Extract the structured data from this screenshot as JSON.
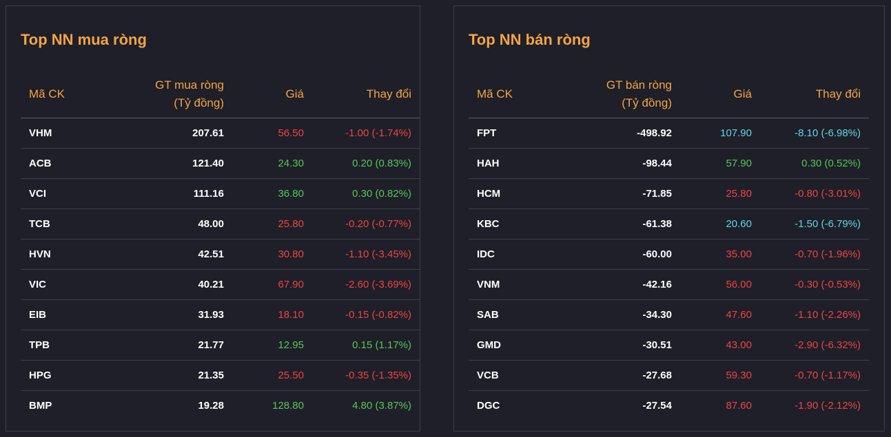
{
  "colors": {
    "up": "#57c75a",
    "down": "#ef4444",
    "floor": "#5fd9e2",
    "accent": "#f5a443"
  },
  "left": {
    "title": "Top NN mua ròng",
    "headers": {
      "code": "Mã CK",
      "value_line1": "GT mua ròng",
      "value_line2": "(Tỷ đồng)",
      "price": "Giá",
      "change": "Thay đổi"
    },
    "rows": [
      {
        "code": "VHM",
        "value": "207.61",
        "price": "56.50",
        "change": "-1.00 (-1.74%)",
        "status": "down"
      },
      {
        "code": "ACB",
        "value": "121.40",
        "price": "24.30",
        "change": "0.20 (0.83%)",
        "status": "up"
      },
      {
        "code": "VCI",
        "value": "111.16",
        "price": "36.80",
        "change": "0.30 (0.82%)",
        "status": "up"
      },
      {
        "code": "TCB",
        "value": "48.00",
        "price": "25.80",
        "change": "-0.20 (-0.77%)",
        "status": "down"
      },
      {
        "code": "HVN",
        "value": "42.51",
        "price": "30.80",
        "change": "-1.10 (-3.45%)",
        "status": "down"
      },
      {
        "code": "VIC",
        "value": "40.21",
        "price": "67.90",
        "change": "-2.60 (-3.69%)",
        "status": "down"
      },
      {
        "code": "EIB",
        "value": "31.93",
        "price": "18.10",
        "change": "-0.15 (-0.82%)",
        "status": "down"
      },
      {
        "code": "TPB",
        "value": "21.77",
        "price": "12.95",
        "change": "0.15 (1.17%)",
        "status": "up"
      },
      {
        "code": "HPG",
        "value": "21.35",
        "price": "25.50",
        "change": "-0.35 (-1.35%)",
        "status": "down"
      },
      {
        "code": "BMP",
        "value": "19.28",
        "price": "128.80",
        "change": "4.80 (3.87%)",
        "status": "up"
      }
    ]
  },
  "right": {
    "title": "Top NN bán ròng",
    "headers": {
      "code": "Mã CK",
      "value_line1": "GT bán ròng",
      "value_line2": "(Tỷ đồng)",
      "price": "Giá",
      "change": "Thay đổi"
    },
    "rows": [
      {
        "code": "FPT",
        "value": "-498.92",
        "price": "107.90",
        "change": "-8.10 (-6.98%)",
        "status": "floor"
      },
      {
        "code": "HAH",
        "value": "-98.44",
        "price": "57.90",
        "change": "0.30 (0.52%)",
        "status": "up"
      },
      {
        "code": "HCM",
        "value": "-71.85",
        "price": "25.80",
        "change": "-0.80 (-3.01%)",
        "status": "down"
      },
      {
        "code": "KBC",
        "value": "-61.38",
        "price": "20.60",
        "change": "-1.50 (-6.79%)",
        "status": "floor"
      },
      {
        "code": "IDC",
        "value": "-60.00",
        "price": "35.00",
        "change": "-0.70 (-1.96%)",
        "status": "down"
      },
      {
        "code": "VNM",
        "value": "-42.16",
        "price": "56.00",
        "change": "-0.30 (-0.53%)",
        "status": "down"
      },
      {
        "code": "SAB",
        "value": "-34.30",
        "price": "47.60",
        "change": "-1.10 (-2.26%)",
        "status": "down"
      },
      {
        "code": "GMD",
        "value": "-30.51",
        "price": "43.00",
        "change": "-2.90 (-6.32%)",
        "status": "down"
      },
      {
        "code": "VCB",
        "value": "-27.68",
        "price": "59.30",
        "change": "-0.70 (-1.17%)",
        "status": "down"
      },
      {
        "code": "DGC",
        "value": "-27.54",
        "price": "87.60",
        "change": "-1.90 (-2.12%)",
        "status": "down"
      }
    ]
  }
}
